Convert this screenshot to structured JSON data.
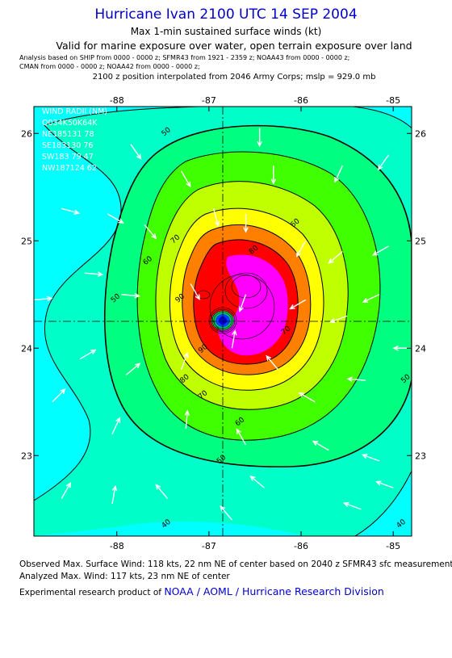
{
  "header": {
    "title": "Hurricane Ivan 2100 UTC 14 SEP 2004",
    "subtitle": "Max 1-min sustained surface winds (kt)",
    "validity": "Valid for marine exposure over water, open terrain exposure over land",
    "analysis_line1": "Analysis based on  SHIP from 0000 - 0000 z;  SFMR43 from 1921 - 2359 z;  NOAA43 from 0000 - 0000 z;",
    "analysis_line2": "CMAN from 0000 - 0000 z;  NOAA42 from 0000 - 0000 z;",
    "position_note": "2100 z position interpolated from 2046 Army Corps; mslp = 929.0 mb"
  },
  "wind_radii": {
    "title": "WIND RADII (NM)",
    "header": "Q034K50K64K",
    "rows": [
      "NE185131 78",
      "SE183130 76",
      "SW183 79 47",
      "NW187124 62"
    ]
  },
  "footer": {
    "observed": "Observed Max. Surface Wind: 118 kts, 22 nm NE of center based on 2040 z SFMR43 sfc measurement",
    "analyzed": "Analyzed Max. Wind: 117 kts, 23 nm NE of center",
    "credit_prefix": "Experimental research product of ",
    "credit_link": "NOAA / AOML / Hurricane Research Division"
  },
  "chart_data": {
    "type": "heatmap",
    "variable": "Max 1-min sustained surface winds (kt)",
    "x_ticks": [
      "-88",
      "-87",
      "-86",
      "-85"
    ],
    "y_ticks": [
      "23",
      "24",
      "25",
      "26"
    ],
    "xlim": [
      -88.9,
      -84.8
    ],
    "ylim": [
      22.25,
      26.25
    ],
    "center": {
      "lon": -86.75,
      "lat": 24.2
    },
    "contour_levels": [
      "40",
      "50",
      "60",
      "70",
      "80",
      "90"
    ],
    "contour_labels": [
      {
        "text": "50",
        "lon": -87.45,
        "lat": 26.0
      },
      {
        "text": "60",
        "lon": -87.65,
        "lat": 24.8
      },
      {
        "text": "70",
        "lon": -87.35,
        "lat": 25.0
      },
      {
        "text": "80",
        "lon": -86.5,
        "lat": 24.9
      },
      {
        "text": "60",
        "lon": -86.05,
        "lat": 25.15
      },
      {
        "text": "90",
        "lon": -87.3,
        "lat": 24.45
      },
      {
        "text": "90",
        "lon": -87.05,
        "lat": 23.98
      },
      {
        "text": "80",
        "lon": -87.25,
        "lat": 23.7
      },
      {
        "text": "70",
        "lon": -87.05,
        "lat": 23.55
      },
      {
        "text": "60",
        "lon": -86.65,
        "lat": 23.3
      },
      {
        "text": "50",
        "lon": -86.85,
        "lat": 22.95
      },
      {
        "text": "50",
        "lon": -88.0,
        "lat": 24.45
      },
      {
        "text": "50",
        "lon": -84.85,
        "lat": 23.7
      },
      {
        "text": "40",
        "lon": -87.45,
        "lat": 22.35
      },
      {
        "text": "40",
        "lon": -84.9,
        "lat": 22.35
      },
      {
        "text": "70",
        "lon": -86.15,
        "lat": 24.15
      }
    ],
    "colors": {
      "under_40": "#00ffff",
      "40_50": "#00ffc8",
      "50_60": "#00ff80",
      "60_70": "#40ff00",
      "70_80": "#c0ff00",
      "80_90": "#ffff00",
      "90_100": "#ff8000",
      "100_110": "#ff0000",
      "110_plus": "#ff00ff",
      "eye": "#0000ff"
    },
    "wind_vectors": [
      {
        "lon": -86.45,
        "lat": 26.05,
        "angle": 180
      },
      {
        "lon": -87.85,
        "lat": 25.9,
        "angle": 145
      },
      {
        "lon": -87.3,
        "lat": 25.65,
        "angle": 150
      },
      {
        "lon": -86.3,
        "lat": 25.7,
        "angle": 180
      },
      {
        "lon": -85.55,
        "lat": 25.7,
        "angle": 205
      },
      {
        "lon": -85.05,
        "lat": 25.8,
        "angle": 215
      },
      {
        "lon": -88.6,
        "lat": 25.3,
        "angle": 105
      },
      {
        "lon": -88.1,
        "lat": 25.25,
        "angle": 120
      },
      {
        "lon": -87.7,
        "lat": 25.15,
        "angle": 140
      },
      {
        "lon": -86.95,
        "lat": 25.3,
        "angle": 165
      },
      {
        "lon": -86.6,
        "lat": 25.25,
        "angle": 180
      },
      {
        "lon": -85.95,
        "lat": 25.0,
        "angle": 210
      },
      {
        "lon": -85.55,
        "lat": 24.9,
        "angle": 230
      },
      {
        "lon": -85.05,
        "lat": 24.95,
        "angle": 240
      },
      {
        "lon": -88.9,
        "lat": 24.45,
        "angle": 85
      },
      {
        "lon": -88.35,
        "lat": 24.7,
        "angle": 95
      },
      {
        "lon": -87.95,
        "lat": 24.5,
        "angle": 95
      },
      {
        "lon": -87.2,
        "lat": 24.6,
        "angle": 150
      },
      {
        "lon": -86.6,
        "lat": 24.5,
        "angle": 200
      },
      {
        "lon": -85.95,
        "lat": 24.45,
        "angle": 240
      },
      {
        "lon": -85.5,
        "lat": 24.3,
        "angle": 250
      },
      {
        "lon": -85.15,
        "lat": 24.5,
        "angle": 245
      },
      {
        "lon": -84.8,
        "lat": 24.0,
        "angle": 270
      },
      {
        "lon": -88.4,
        "lat": 23.9,
        "angle": 60
      },
      {
        "lon": -87.9,
        "lat": 23.75,
        "angle": 50
      },
      {
        "lon": -87.3,
        "lat": 23.8,
        "angle": 20
      },
      {
        "lon": -86.75,
        "lat": 24.0,
        "angle": 10
      },
      {
        "lon": -86.25,
        "lat": 23.8,
        "angle": 320
      },
      {
        "lon": -85.85,
        "lat": 23.5,
        "angle": 300
      },
      {
        "lon": -85.3,
        "lat": 23.7,
        "angle": 275
      },
      {
        "lon": -88.7,
        "lat": 23.5,
        "angle": 45
      },
      {
        "lon": -88.05,
        "lat": 23.2,
        "angle": 25
      },
      {
        "lon": -87.25,
        "lat": 23.25,
        "angle": 5
      },
      {
        "lon": -86.6,
        "lat": 23.1,
        "angle": 330
      },
      {
        "lon": -85.7,
        "lat": 23.05,
        "angle": 300
      },
      {
        "lon": -85.15,
        "lat": 22.95,
        "angle": 290
      },
      {
        "lon": -88.6,
        "lat": 22.6,
        "angle": 30
      },
      {
        "lon": -88.05,
        "lat": 22.55,
        "angle": 10
      },
      {
        "lon": -87.45,
        "lat": 22.6,
        "angle": 320
      },
      {
        "lon": -86.4,
        "lat": 22.7,
        "angle": 310
      },
      {
        "lon": -85.35,
        "lat": 22.5,
        "angle": 290
      },
      {
        "lon": -85.0,
        "lat": 22.7,
        "angle": 290
      },
      {
        "lon": -86.75,
        "lat": 22.4,
        "angle": 320
      }
    ]
  }
}
